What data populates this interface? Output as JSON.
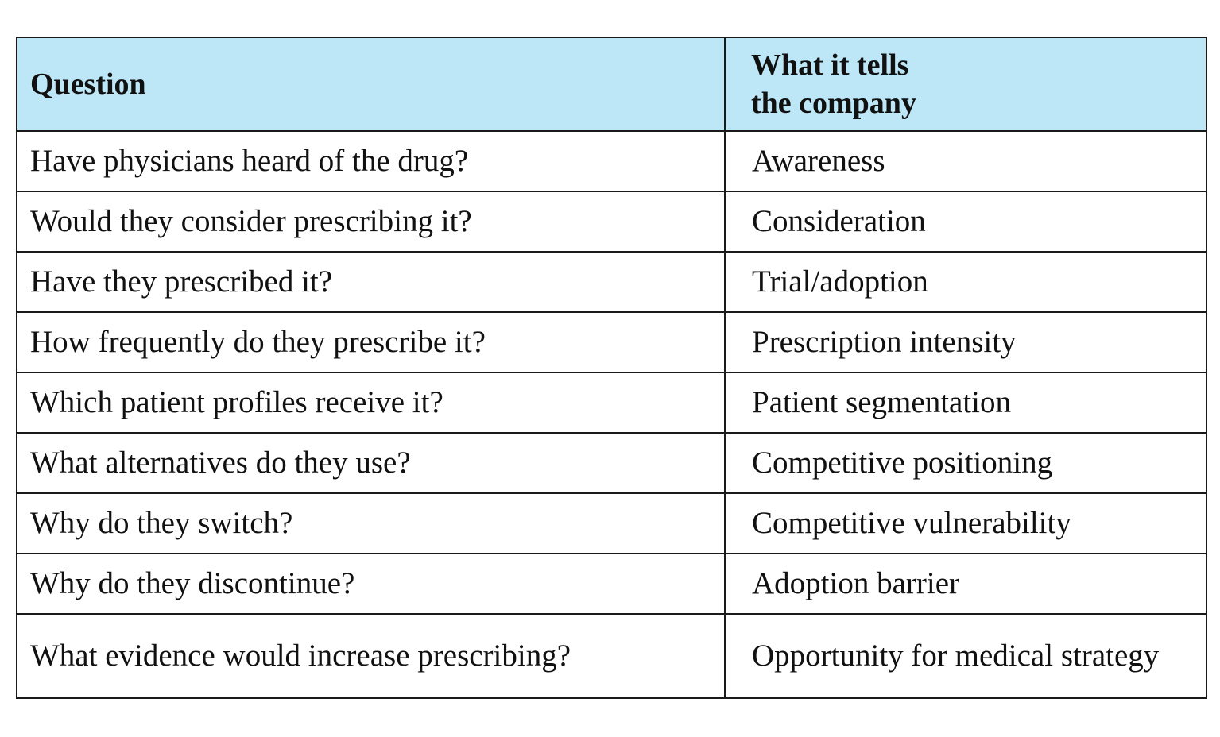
{
  "table": {
    "headers": [
      "Question",
      "What it tells\nthe company"
    ],
    "header_question": "Question",
    "header_answer_line1": "What it tells",
    "header_answer_line2": "the company",
    "rows": [
      {
        "question": "Have physicians heard of the drug?",
        "answer": "Awareness"
      },
      {
        "question": "Would they consider prescribing it?",
        "answer": "Consideration"
      },
      {
        "question": "Have they prescribed it?",
        "answer": "Trial/adoption"
      },
      {
        "question": "How frequently do they prescribe it?",
        "answer": "Prescription intensity"
      },
      {
        "question": "Which patient profiles receive it?",
        "answer": "Patient segmentation"
      },
      {
        "question": "What alternatives do they use?",
        "answer": "Competitive positioning"
      },
      {
        "question": "Why do they switch?",
        "answer": "Competitive vulnerability"
      },
      {
        "question": "Why do they discontinue?",
        "answer": "Adoption barrier"
      },
      {
        "question": "What evidence would increase prescribing?",
        "answer": "Opportunity for medical strategy"
      }
    ]
  },
  "colors": {
    "header_background": "#bde7f7",
    "border": "#1a1a1a",
    "text": "#111111"
  }
}
